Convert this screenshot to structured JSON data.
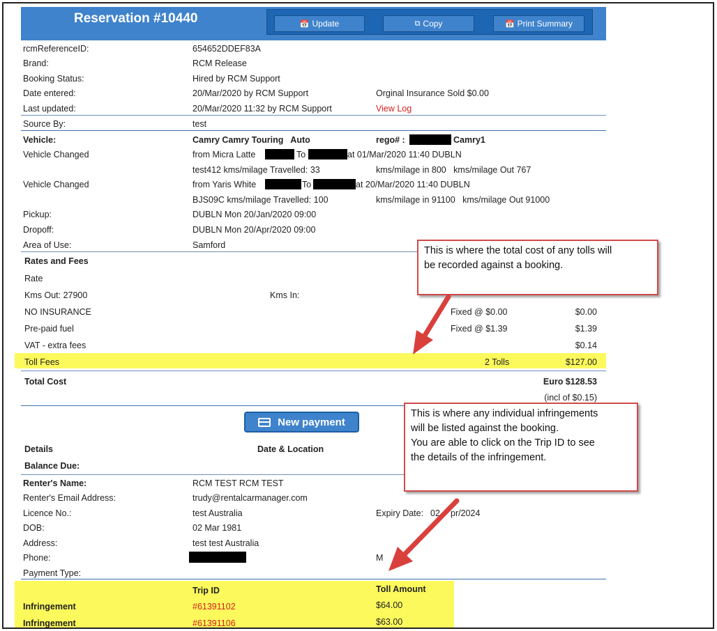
{
  "header": {
    "title": "Reservation #10440",
    "buttons": {
      "update": "Update",
      "copy": "Copy",
      "print": "Print Summary"
    }
  },
  "info": {
    "rcm_ref_label": "rcmReferenceID:",
    "rcm_ref_value": "654652DDEF83A",
    "brand_label": "Brand:",
    "brand_value": "RCM Release",
    "status_label": "Booking Status:",
    "status_value": "Hired by RCM Support",
    "entered_label": "Date entered:",
    "entered_value": "20/Mar/2020 by RCM Support",
    "insurance_sold": "Orginal Insurance Sold $0.00",
    "updated_label": "Last updated:",
    "updated_value": "20/Mar/2020 11:32 by RCM Support",
    "view_log": "View Log",
    "source_label": "Source By:",
    "source_value": "test"
  },
  "vehicle": {
    "label": "Vehicle:",
    "value": "Camry Camry Touring   Auto",
    "rego_label": "rego# :",
    "rego_suffix": "Camry1",
    "change1_label": "Vehicle Changed",
    "change1_from": "from Micra Latte",
    "change1_to": "To",
    "change1_at": "at 01/Mar/2020 11:40 DUBLN",
    "change1_travel": "test412 kms/milage Travelled: 33",
    "change1_inout": "kms/milage in 800   kms/milage Out 767",
    "change2_label": "Vehicle Changed",
    "change2_from": "from Yaris White",
    "change2_to": "To",
    "change2_at": "at 20/Mar/2020 11:40 DUBLN",
    "change2_travel": "BJS09C kms/milage Travelled: 100",
    "change2_inout": "kms/milage in 91100   kms/milage Out 91000",
    "pickup_label": "Pickup:",
    "pickup_value": "DUBLN Mon 20/Jan/2020 09:00",
    "dropoff_label": "Dropoff:",
    "dropoff_value": "DUBLN Mon 20/Apr/2020 09:00",
    "area_label": "Area of Use:",
    "area_value": "Samford"
  },
  "rates": {
    "heading": "Rates and Fees",
    "rate_label": "Rate",
    "kms_out": "Kms Out: 27900",
    "kms_in": "Kms In:",
    "rows": [
      {
        "name": "NO INSURANCE",
        "detail": "Fixed @ $0.00",
        "amount": "$0.00"
      },
      {
        "name": "Pre-paid fuel",
        "detail": "Fixed @ $1.39",
        "amount": "$1.39"
      },
      {
        "name": "VAT - extra fees",
        "detail": "",
        "amount": "$0.14"
      }
    ],
    "toll": {
      "name": "Toll Fees",
      "detail": "2 Tolls",
      "amount": "$127.00"
    },
    "total_label": "Total Cost",
    "total_value": "Euro $128.53",
    "total_incl": "(incl of $0.15)"
  },
  "payment": {
    "new_payment": "New payment",
    "details_label": "Details",
    "date_location_label": "Date & Location",
    "balance_label": "Balance Due:"
  },
  "renter": {
    "name_label": "Renter's Name:",
    "name_value": "RCM TEST RCM TEST",
    "email_label": "Renter's Email Address:",
    "email_value": "trudy@rentalcarmanager.com",
    "licence_label": "Licence No.:",
    "licence_value": "test Australia",
    "expiry_label": "Expiry Date:",
    "expiry_value_a": "02",
    "expiry_value_b": "pr/2024",
    "dob_label": "DOB:",
    "dob_value": "02 Mar 1981",
    "address_label": "Address:",
    "address_value": "test test Australia",
    "phone_label": "Phone:",
    "mobile_label_a": "M",
    "mobile_label_b": "e:",
    "payment_type_label": "Payment Type:"
  },
  "infringements": {
    "trip_id_header": "Trip ID",
    "toll_amount_header": "Toll Amount",
    "rows": [
      {
        "label": "Infringement",
        "trip_id": "#61391102",
        "amount": "$64.00"
      },
      {
        "label": "Infringement",
        "trip_id": "#61391106",
        "amount": "$63.00"
      }
    ]
  },
  "callouts": {
    "tolls": [
      "This is where the total cost of any tolls will",
      "be recorded against a booking."
    ],
    "infringements": [
      "This is where any individual infringements",
      "will be listed against the booking.",
      "You are able to click on the Trip ID to see",
      "the details of the infringement."
    ]
  },
  "colors": {
    "header_blue": "#3f83cc",
    "highlight_yellow": "#fcf95c",
    "callout_red": "#cf4a48",
    "link_red": "#d61f1f"
  },
  "icons": {
    "update": "calendar-check-icon",
    "copy": "copy-icon",
    "print": "calendar-check-icon",
    "new_payment": "credit-card-icon"
  }
}
